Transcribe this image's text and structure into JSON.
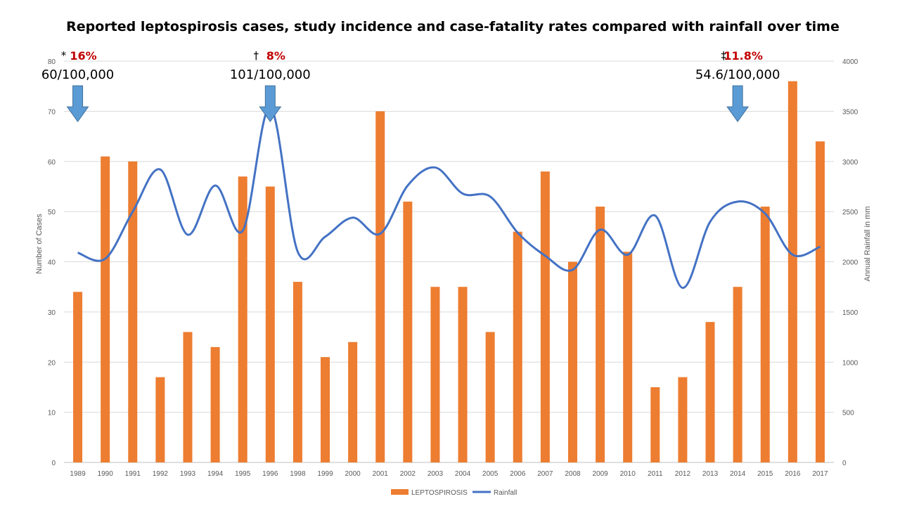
{
  "colors": {
    "bars": "#ED7D31",
    "line": "#4472C4",
    "arrow_fill": "#5B9BD5",
    "arrow_stroke": "#41719C",
    "annotation_pct": "#C00000",
    "grid": "#D9D9D9"
  },
  "chart_data": {
    "type": "bar",
    "title": "Reported leptospirosis cases, study incidence and case-fatality rates compared with rainfall over time",
    "xlabel": "",
    "ylabel": "Number of Cases",
    "y2label": "Annual Rainfall in mm",
    "ylim": [
      0,
      80
    ],
    "y2lim": [
      0,
      4000
    ],
    "yticks": [
      "0",
      "10",
      "20",
      "30",
      "40",
      "50",
      "60",
      "70",
      "80"
    ],
    "y2ticks": [
      "0",
      "500",
      "1000",
      "1500",
      "2000",
      "2500",
      "3000",
      "3500",
      "4000"
    ],
    "grid": true,
    "legend_position": "bottom",
    "categories": [
      "1989",
      "1990",
      "1991",
      "1992",
      "1993",
      "1994",
      "1995",
      "1996",
      "1998",
      "1999",
      "2000",
      "2001",
      "2002",
      "2003",
      "2004",
      "2005",
      "2006",
      "2007",
      "2008",
      "2009",
      "2010",
      "2011",
      "2012",
      "2013",
      "2014",
      "2015",
      "2016",
      "2017"
    ],
    "series": [
      {
        "name": "LEPTOSPIROSIS",
        "type": "bar",
        "axis": "left",
        "values": [
          34,
          61,
          60,
          17,
          26,
          23,
          57,
          55,
          36,
          21,
          24,
          70,
          52,
          35,
          35,
          26,
          46,
          58,
          40,
          51,
          42,
          15,
          17,
          28,
          35,
          51,
          76,
          64
        ]
      },
      {
        "name": "Rainfall",
        "type": "line",
        "axis": "right",
        "values": [
          2090,
          2030,
          2500,
          2920,
          2270,
          2760,
          2310,
          3540,
          2100,
          2250,
          2440,
          2280,
          2760,
          2940,
          2680,
          2650,
          2290,
          2060,
          1920,
          2320,
          2070,
          2460,
          1740,
          2400,
          2600,
          2480,
          2070,
          2150
        ]
      }
    ],
    "annotations": [
      {
        "symbol": "*",
        "cfr": "16%",
        "incidence": "60/100,000",
        "category": "1989"
      },
      {
        "symbol": "†",
        "cfr": "8%",
        "incidence": "101/100,000",
        "category": "1996"
      },
      {
        "symbol": "‡",
        "cfr": "11.8%",
        "incidence": "54.6/100,000",
        "category": "2014"
      }
    ]
  }
}
